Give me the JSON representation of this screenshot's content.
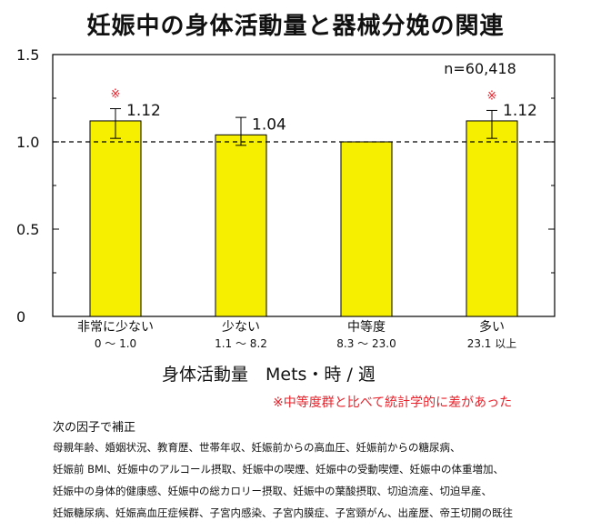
{
  "chart_data": {
    "type": "bar",
    "title": "妊娠中の身体活動量と器械分娩の関連",
    "categories": [
      "非常に少ない",
      "少ない",
      "中等度",
      "多い"
    ],
    "category_ranges": [
      "0 ～ 1.0",
      "1.1 ～ 8.2",
      "8.3 ～ 23.0",
      "23.1 以上"
    ],
    "values": [
      1.12,
      1.04,
      1.0,
      1.12
    ],
    "value_labels": [
      "1.12",
      "1.04",
      "",
      "1.12"
    ],
    "error_low": [
      1.02,
      0.98,
      null,
      1.02
    ],
    "error_high": [
      1.19,
      1.14,
      null,
      1.18
    ],
    "significant": [
      true,
      false,
      false,
      true
    ],
    "significance_mark": "※",
    "reference_line": 1.0,
    "ylim": [
      0,
      1.5
    ],
    "yticks": [
      0,
      0.5,
      1.0,
      1.5
    ],
    "ytick_labels": [
      "0",
      "0.5",
      "1.0",
      "1.5"
    ],
    "xlabel": "身体活動量　Mets・時 / 週",
    "sample_note": "n=60,418",
    "bar_color": "#f7ef00"
  },
  "notes": {
    "significance": "※中等度群と比べて統計学的に差があった",
    "adjustment_heading": "次の因子で補正",
    "adjustment_lines": [
      "母親年齢、婚姻状況、教育歴、世帯年収、妊娠前からの高血圧、妊娠前からの糖尿病、",
      "妊娠前 BMI、妊娠中のアルコール摂取、妊娠中の喫煙、妊娠中の受動喫煙、妊娠中の体重増加、",
      "妊娠中の身体的健康感、妊娠中の総カロリー摂取、妊娠中の葉酸摂取、切迫流産、切迫早産、",
      "妊娠糖尿病、妊娠高血圧症候群、子宮内感染、子宮内膜症、子宮頸がん、出産歴、帝王切開の既往"
    ]
  }
}
